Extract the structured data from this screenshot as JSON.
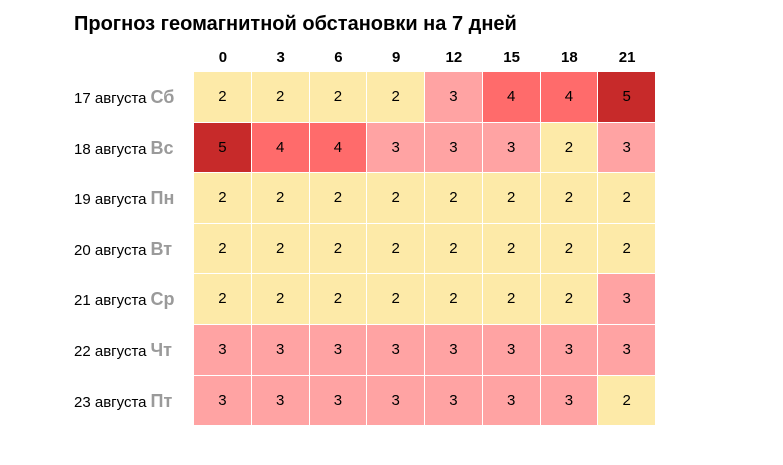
{
  "chart_data": {
    "type": "heatmap",
    "title": "Прогноз геомагнитной обстановки на 7 дней",
    "columns": [
      "0",
      "3",
      "6",
      "9",
      "12",
      "15",
      "18",
      "21"
    ],
    "rows": [
      {
        "date": "17 августа",
        "day": "Сб",
        "values": [
          2,
          2,
          2,
          2,
          3,
          4,
          4,
          5
        ]
      },
      {
        "date": "18 августа",
        "day": "Вс",
        "values": [
          5,
          4,
          4,
          3,
          3,
          3,
          2,
          3
        ]
      },
      {
        "date": "19 августа",
        "day": "Пн",
        "values": [
          2,
          2,
          2,
          2,
          2,
          2,
          2,
          2
        ]
      },
      {
        "date": "20 августа",
        "day": "Вт",
        "values": [
          2,
          2,
          2,
          2,
          2,
          2,
          2,
          2
        ]
      },
      {
        "date": "21 августа",
        "day": "Ср",
        "values": [
          2,
          2,
          2,
          2,
          2,
          2,
          2,
          3
        ]
      },
      {
        "date": "22 августа",
        "day": "Чт",
        "values": [
          3,
          3,
          3,
          3,
          3,
          3,
          3,
          3
        ]
      },
      {
        "date": "23 августа",
        "day": "Пт",
        "values": [
          3,
          3,
          3,
          3,
          3,
          3,
          3,
          2
        ]
      }
    ],
    "level_colors": {
      "2": "#fdeaa8",
      "3": "#ffa3a3",
      "4": "#ff6b6b",
      "5": "#c72a2a"
    },
    "day_label_color": "#9a9a9a"
  }
}
